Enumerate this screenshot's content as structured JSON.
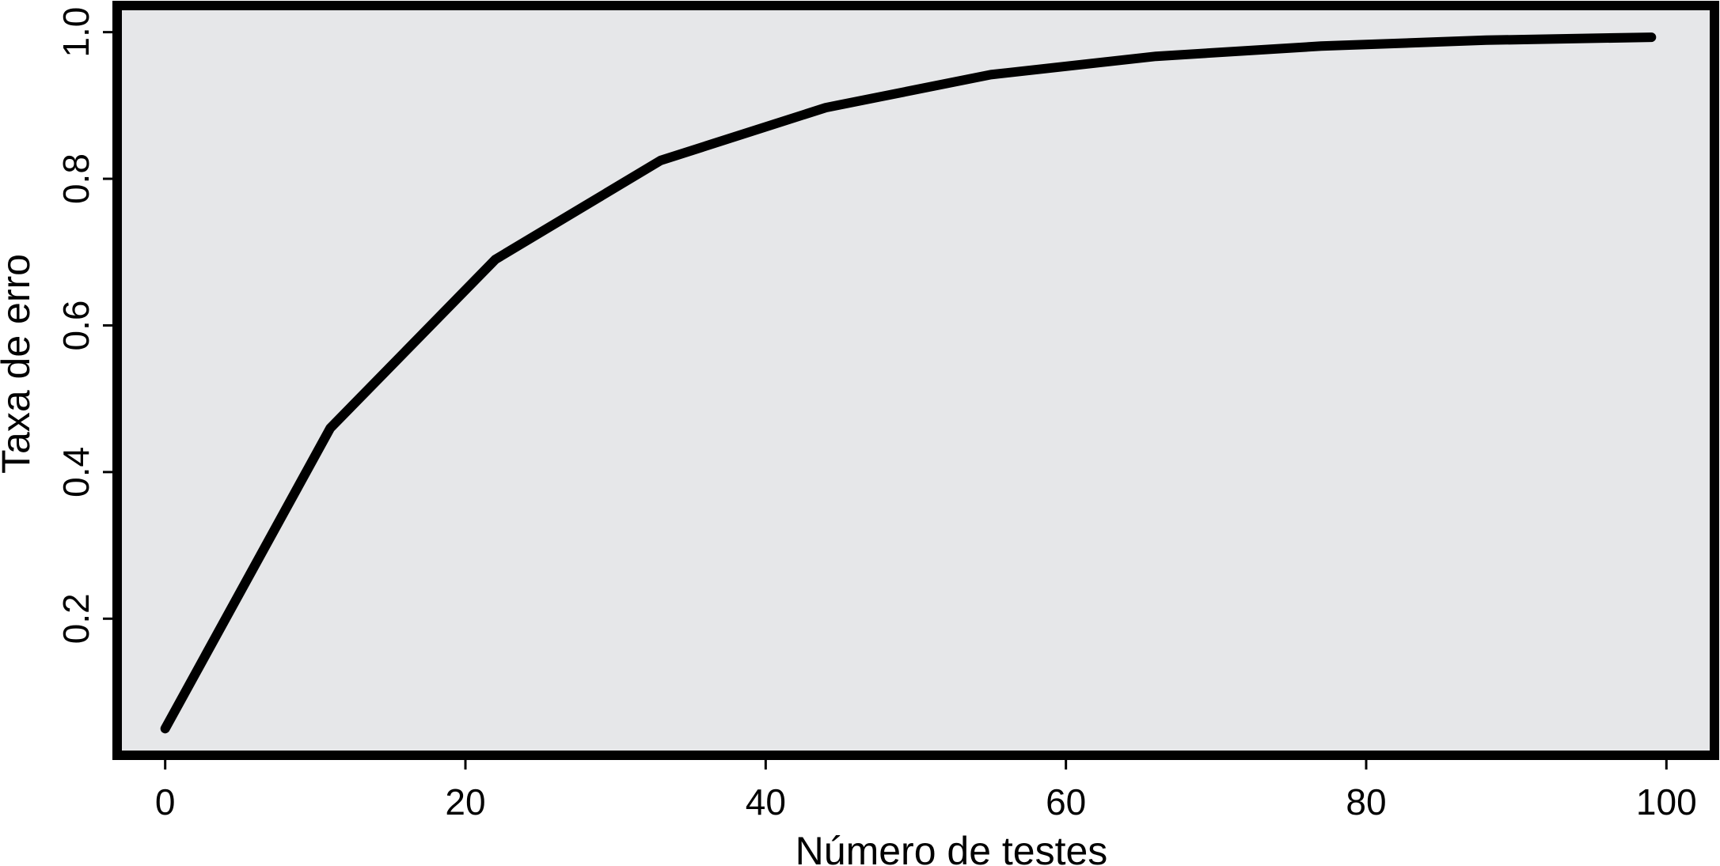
{
  "chart_data": {
    "type": "line",
    "title": "",
    "xlabel": "Número de testes",
    "ylabel": "Taxa de erro",
    "xlim": [
      -3.2,
      103.2
    ],
    "ylim": [
      0.0137,
      1.0363
    ],
    "x_ticks": [
      0,
      20,
      40,
      60,
      80,
      100
    ],
    "y_ticks": [
      0.2,
      0.4,
      0.6,
      0.8,
      1.0
    ],
    "x_tick_labels": [
      "0",
      "20",
      "40",
      "60",
      "80",
      "100"
    ],
    "y_tick_labels": [
      "0.2",
      "0.4",
      "0.6",
      "0.8",
      "1.0"
    ],
    "grid": false,
    "colors": {
      "plot_background": "#e6e7e9",
      "line": "#000000",
      "frame": "#000000"
    },
    "series": [
      {
        "x": [
          0,
          11,
          22,
          33,
          44,
          55,
          66,
          77,
          88,
          99
        ],
        "y": [
          0.05,
          0.46,
          0.69,
          0.825,
          0.897,
          0.942,
          0.967,
          0.981,
          0.989,
          0.993
        ]
      }
    ]
  }
}
